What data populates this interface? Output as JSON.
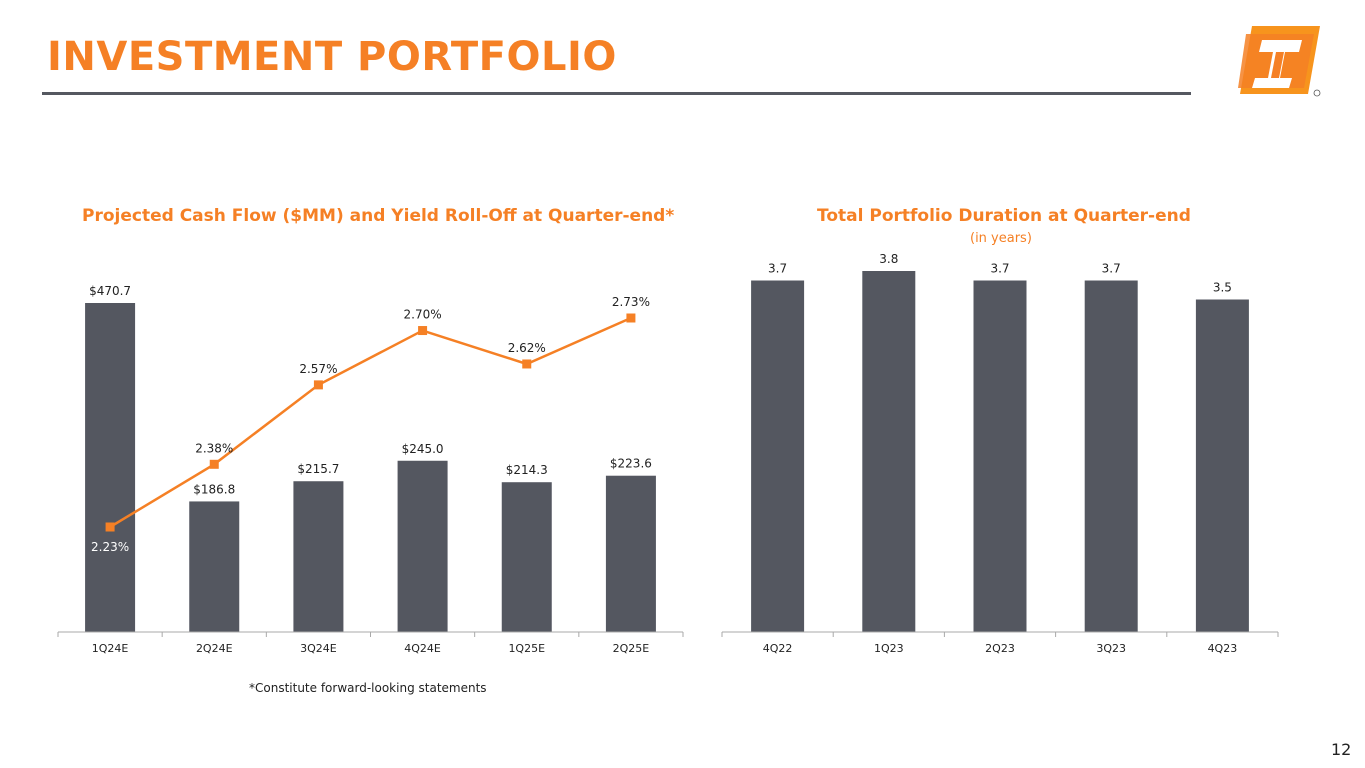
{
  "page": {
    "title": "INVESTMENT PORTFOLIO",
    "footnote": "*Constitute forward-looking statements",
    "page_number": "12",
    "logo": {
      "name": "company-logo",
      "colors": [
        "#f58025",
        "#f7941d"
      ]
    }
  },
  "colors": {
    "accent": "#f58025",
    "bar": "#545760",
    "axis": "#a9a9a9",
    "text": "#222222"
  },
  "chart_data": [
    {
      "type": "bar",
      "title": "Projected Cash Flow ($MM) and Yield Roll-Off at Quarter-end*",
      "categories": [
        "1Q24E",
        "2Q24E",
        "3Q24E",
        "4Q24E",
        "1Q25E",
        "2Q25E"
      ],
      "series": [
        {
          "name": "Projected Cash Flow ($MM)",
          "type": "bar",
          "values": [
            470.7,
            186.8,
            215.7,
            245.0,
            214.3,
            223.6
          ],
          "labels": [
            "$470.7",
            "$186.8",
            "$215.7",
            "$245.0",
            "$214.3",
            "$223.6"
          ]
        },
        {
          "name": "Yield Roll-Off",
          "type": "line",
          "values": [
            2.23,
            2.38,
            2.57,
            2.7,
            2.62,
            2.73
          ],
          "labels": [
            "2.23%",
            "2.38%",
            "2.57%",
            "2.70%",
            "2.62%",
            "2.73%"
          ]
        }
      ],
      "ylim": [
        0,
        470.7
      ],
      "y2lim": [
        1.95,
        2.79
      ],
      "grid": false
    },
    {
      "type": "bar",
      "title": "Total Portfolio Duration at Quarter-end",
      "subtitle": "(in years)",
      "categories": [
        "4Q22",
        "1Q23",
        "2Q23",
        "3Q23",
        "4Q23"
      ],
      "values": [
        3.7,
        3.8,
        3.7,
        3.7,
        3.5
      ],
      "labels": [
        "3.7",
        "3.8",
        "3.7",
        "3.7",
        "3.5"
      ],
      "ylim": [
        0,
        4.5
      ],
      "grid": false
    }
  ]
}
